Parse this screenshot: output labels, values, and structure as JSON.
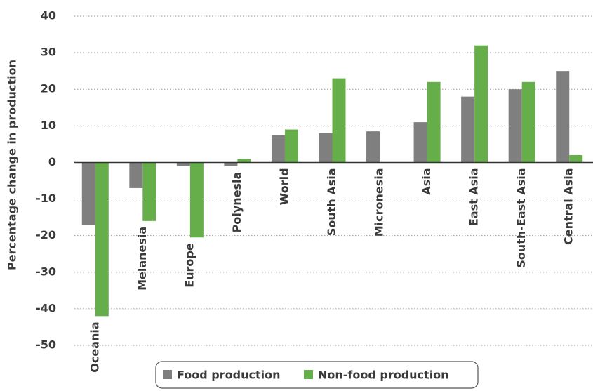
{
  "chart_data": {
    "type": "bar",
    "y_label": "Percentage change in production",
    "categories": [
      "Oceania",
      "Melanesia",
      "Europe",
      "Polynesia",
      "World",
      "South Asia",
      "Micronesia",
      "Asia",
      "East Asia",
      "South-East Asia",
      "Central Asia"
    ],
    "series": [
      {
        "name": "Food production",
        "color": "#7f7f7f",
        "values": [
          -17,
          -7,
          -1,
          -1,
          7.5,
          8,
          8.5,
          11,
          18,
          20,
          25
        ]
      },
      {
        "name": "Non-food production",
        "color": "#66ae4a",
        "values": [
          -42,
          -16,
          -20.5,
          1,
          9,
          23,
          null,
          22,
          32,
          22,
          2
        ]
      }
    ],
    "ylim": [
      -50,
      40
    ],
    "yticks": [
      40,
      30,
      20,
      10,
      0,
      -10,
      -20,
      -30,
      -40,
      -50
    ],
    "grid": true,
    "legend": "bottom"
  }
}
